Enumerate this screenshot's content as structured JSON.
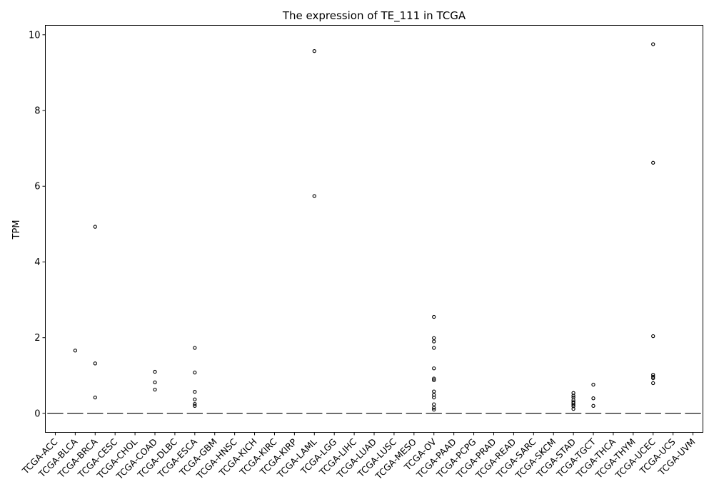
{
  "chart_data": {
    "type": "boxplot",
    "title": "The expression of TE_111 in TCGA",
    "xlabel": "",
    "ylabel": "TPM",
    "ylim": [
      -0.5,
      10.25
    ],
    "yticks": [
      0,
      2,
      4,
      6,
      8,
      10
    ],
    "grid": false,
    "legend": "none",
    "categories": [
      "TCGA-ACC",
      "TCGA-BLCA",
      "TCGA-BRCA",
      "TCGA-CESC",
      "TCGA-CHOL",
      "TCGA-COAD",
      "TCGA-DLBC",
      "TCGA-ESCA",
      "TCGA-GBM",
      "TCGA-HNSC",
      "TCGA-KICH",
      "TCGA-KIRC",
      "TCGA-KIRP",
      "TCGA-LAML",
      "TCGA-LGG",
      "TCGA-LIHC",
      "TCGA-LUAD",
      "TCGA-LUSC",
      "TCGA-MESO",
      "TCGA-OV",
      "TCGA-PAAD",
      "TCGA-PCPG",
      "TCGA-PRAD",
      "TCGA-READ",
      "TCGA-SARC",
      "TCGA-SKCM",
      "TCGA-STAD",
      "TCGA-TGCT",
      "TCGA-THCA",
      "TCGA-THYM",
      "TCGA-UCEC",
      "TCGA-UCS",
      "TCGA-UVM"
    ],
    "medians": [
      0,
      0,
      0,
      0,
      0,
      0,
      0,
      0,
      0,
      0,
      0,
      0,
      0,
      0,
      0,
      0,
      0,
      0,
      0,
      0,
      0,
      0,
      0,
      0,
      0,
      0,
      0,
      0,
      0,
      0,
      0,
      0,
      0
    ],
    "outliers": [
      [],
      [
        1.66
      ],
      [
        4.93,
        1.32,
        0.42
      ],
      [],
      [],
      [
        1.1,
        0.82,
        0.63
      ],
      [],
      [
        1.73,
        1.08,
        0.57,
        0.37,
        0.25,
        0.2
      ],
      [],
      [],
      [],
      [],
      [],
      [
        9.57,
        5.74
      ],
      [],
      [],
      [],
      [],
      [],
      [
        2.55,
        1.99,
        1.9,
        1.73,
        1.19,
        0.92,
        0.88,
        0.58,
        0.49,
        0.42,
        0.24,
        0.15,
        0.1
      ],
      [],
      [],
      [],
      [],
      [],
      [],
      [
        0.54,
        0.47,
        0.42,
        0.35,
        0.3,
        0.27,
        0.23,
        0.19,
        0.12
      ],
      [
        0.76,
        0.4,
        0.2
      ],
      [],
      [],
      [
        9.75,
        6.62,
        2.04,
        1.02,
        0.97,
        0.93,
        0.8
      ],
      [],
      []
    ]
  }
}
